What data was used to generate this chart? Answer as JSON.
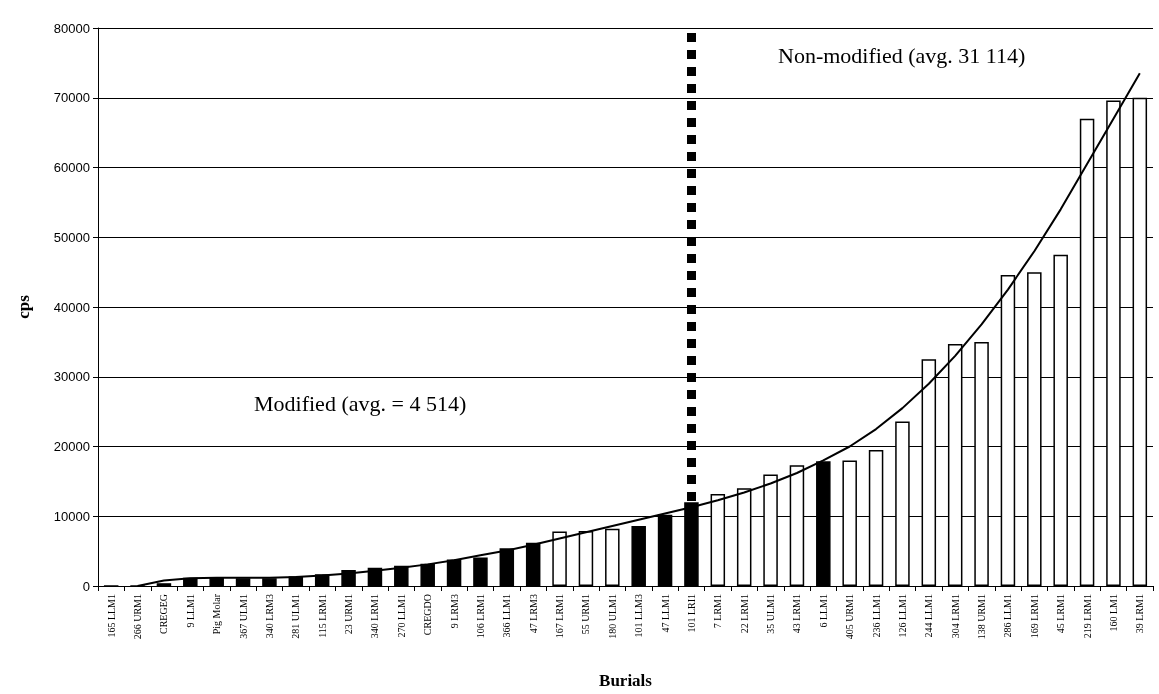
{
  "chart_data": {
    "type": "bar",
    "xlabel": "Burials",
    "ylabel": "cps",
    "categories": [
      "165 LLM1",
      "266 URM1",
      "CREGEG",
      "9 LLM1",
      "Pig Molar",
      "367 ULM1",
      "340 LRM3",
      "281 ULM1",
      "115 LRM1",
      "23 URM1",
      "340 LRM1",
      "270 LLM1",
      "CREGDO",
      "9 LRM3",
      "106 LRM1",
      "366 LLM1",
      "47 LRM3",
      "167 LRM1",
      "55 URM1",
      "180 ULM1",
      "101 LLM3",
      "47 LLM1",
      "101 LRI1",
      "7 LRM1",
      "22 LRM1",
      "35 ULM1",
      "43 LRM1",
      "6 LLM1",
      "405 URM1",
      "236 LLM1",
      "126 LLM1",
      "244 LLM1",
      "304 LRM1",
      "138 URM1",
      "286 LLM1",
      "169 LRM1",
      "45 LRM1",
      "219 LRM1",
      "160 LM1",
      "39 LRM1"
    ],
    "series": [
      {
        "values": [
          0,
          0,
          400,
          1200,
          1200,
          1100,
          1100,
          1400,
          1700,
          2300,
          2600,
          2900,
          3200,
          3800,
          4100,
          5400,
          6200,
          7800,
          7900,
          8200,
          8600,
          10200,
          12000,
          13200,
          14000,
          16000,
          17300,
          17900,
          18000,
          19500,
          23600,
          32500,
          34700,
          35000,
          44600,
          45000,
          47500,
          67000,
          69600,
          70000
        ],
        "colors": [
          "#000000",
          "#000000",
          "#000000",
          "#000000",
          "#000000",
          "#000000",
          "#000000",
          "#000000",
          "#000000",
          "#000000",
          "#000000",
          "#000000",
          "#000000",
          "#000000",
          "#000000",
          "#000000",
          "#000000",
          "#ffffff",
          "#ffffff",
          "#ffffff",
          "#000000",
          "#000000",
          "#000000",
          "#ffffff",
          "#ffffff",
          "#ffffff",
          "#ffffff",
          "#000000",
          "#ffffff",
          "#ffffff",
          "#ffffff",
          "#ffffff",
          "#ffffff",
          "#ffffff",
          "#ffffff",
          "#ffffff",
          "#ffffff",
          "#ffffff",
          "#ffffff",
          "#ffffff"
        ]
      },
      {
        "type": "line",
        "color": "#000000",
        "marker": "none",
        "values": [
          null,
          0,
          800,
          1100,
          1200,
          1200,
          1200,
          1300,
          1500,
          1800,
          2200,
          2600,
          3100,
          3700,
          4400,
          5100,
          5900,
          6800,
          7700,
          8600,
          9500,
          10400,
          11300,
          12300,
          13400,
          14700,
          16200,
          18000,
          20000,
          22500,
          25500,
          29000,
          33000,
          37500,
          42500,
          48000,
          54000,
          60500,
          67000,
          73500
        ]
      }
    ],
    "ylim": [
      0,
      80000
    ],
    "yticks": [
      0,
      10000,
      20000,
      30000,
      40000,
      50000,
      60000,
      70000,
      80000
    ],
    "grid": "y",
    "ref_lines": [
      {
        "axis": "x",
        "value": "101 LRI1",
        "color": "#000000",
        "line_style": "dashed"
      }
    ],
    "annotations": [
      "Modified (avg. = 4 514)",
      "Non-modified (avg. 31 114)"
    ]
  }
}
